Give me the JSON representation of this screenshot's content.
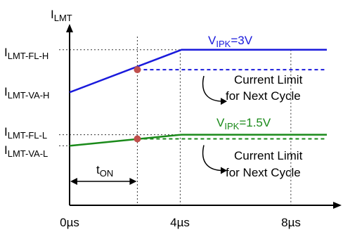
{
  "chart_data": {
    "type": "line",
    "y_axis_label": {
      "main": "I",
      "sub": "LMT"
    },
    "y_level_labels": [
      {
        "main": "I",
        "sub": "LMT-FL-H"
      },
      {
        "main": "I",
        "sub": "LMT-VA-H"
      },
      {
        "main": "I",
        "sub": "LMT-FL-L"
      },
      {
        "main": "I",
        "sub": "LMT-VA-L"
      }
    ],
    "x_ticks": [
      "0µs",
      "4µs",
      "8µs"
    ],
    "x_tick_values": [
      0,
      4,
      8
    ],
    "xlim": [
      0,
      9.3
    ],
    "ylim": [
      0,
      6.4
    ],
    "ton": {
      "main": "t",
      "sub": "ON",
      "value": 2.45
    },
    "series": [
      {
        "name": "V_IPK=3V",
        "label": {
          "main": "V",
          "sub": "IPK",
          "suffix": "=3V"
        },
        "color": "#1a1adc",
        "x": [
          0,
          4.05,
          9.3
        ],
        "y": [
          4.08,
          5.62,
          5.62
        ],
        "next_cycle_level": 4.9
      },
      {
        "name": "V_IPK=1.5V",
        "label": {
          "main": "V",
          "sub": "IPK",
          "suffix": "=1.5V"
        },
        "color": "#1a8a1a",
        "x": [
          0,
          4.05,
          9.3
        ],
        "y": [
          2.15,
          2.55,
          2.55
        ],
        "next_cycle_level": 2.4
      }
    ],
    "annotations": [
      {
        "line1": "Current Limit",
        "line2": "for Next Cycle"
      },
      {
        "line1": "Current Limit",
        "line2": "for Next Cycle"
      }
    ],
    "marker_color": "#c0504d"
  }
}
